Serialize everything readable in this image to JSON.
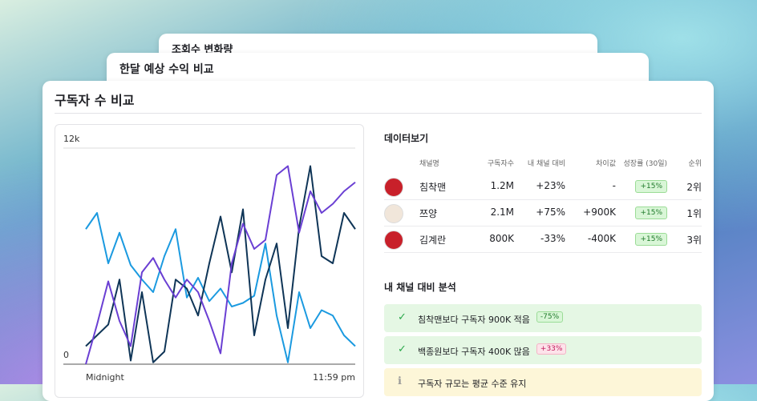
{
  "cards": {
    "back_title": "조회수 변화량",
    "middle_title": "한달 예상 수익 비교"
  },
  "panel": {
    "title": "구독자 수 비교"
  },
  "chart_data": {
    "type": "line",
    "categories": [
      "Midnight",
      null,
      null,
      null,
      null,
      null,
      null,
      null,
      null,
      null,
      null,
      null,
      null,
      null,
      null,
      null,
      null,
      null,
      null,
      null,
      null,
      null,
      null,
      null,
      "11:59 pm"
    ],
    "series": [
      {
        "color": "#1b9ae0",
        "values": [
          7500,
          8400,
          5600,
          7300,
          5500,
          4700,
          4000,
          6000,
          7500,
          3700,
          4800,
          3500,
          4200,
          3200,
          3400,
          3800,
          6700,
          2700,
          100,
          4000,
          2000,
          3000,
          2700,
          1600,
          1000
        ]
      },
      {
        "color": "#0f3557",
        "values": [
          1000,
          1600,
          2200,
          4700,
          200,
          4000,
          100,
          700,
          4700,
          4200,
          2700,
          5600,
          8200,
          5100,
          8600,
          1600,
          4700,
          6700,
          2000,
          7600,
          11000,
          6000,
          5600,
          8400,
          7500
        ]
      },
      {
        "color": "#6a3fd3",
        "values": [
          0,
          2200,
          4600,
          2400,
          1000,
          5100,
          5900,
          4700,
          3700,
          4700,
          4000,
          2400,
          600,
          5600,
          7800,
          6400,
          6900,
          10500,
          11000,
          7300,
          9600,
          8400,
          8900,
          9600,
          10100
        ]
      }
    ],
    "ylim": [
      0,
      12000
    ],
    "yticks": [
      0,
      {
        "value": 12000,
        "label": "12k"
      }
    ],
    "grid": true
  },
  "table": {
    "title": "데이터보기",
    "columns": [
      "채널명",
      "구독자수",
      "내 채널 대비",
      "차이값",
      "성장률 (30일)",
      "순위"
    ],
    "rows": [
      [
        "침착맨",
        "1.2M",
        "+23%",
        "-",
        "+15%",
        "2위"
      ],
      [
        "쯔양",
        "2.1M",
        "+75%",
        "+900K",
        "+15%",
        "1위"
      ],
      [
        "김계란",
        "800K",
        "-33%",
        "-400K",
        "+15%",
        "3위"
      ]
    ]
  },
  "analysis": {
    "title": "내 채널 대비 분석",
    "items": [
      {
        "text": "침착맨보다 구독자 900K 적음",
        "badge": "-75%"
      },
      {
        "text": "백종원보다 구독자 400K 많음",
        "badge": "+33%"
      },
      {
        "text": "구독자 규모는 평균 수준 유지"
      }
    ]
  }
}
